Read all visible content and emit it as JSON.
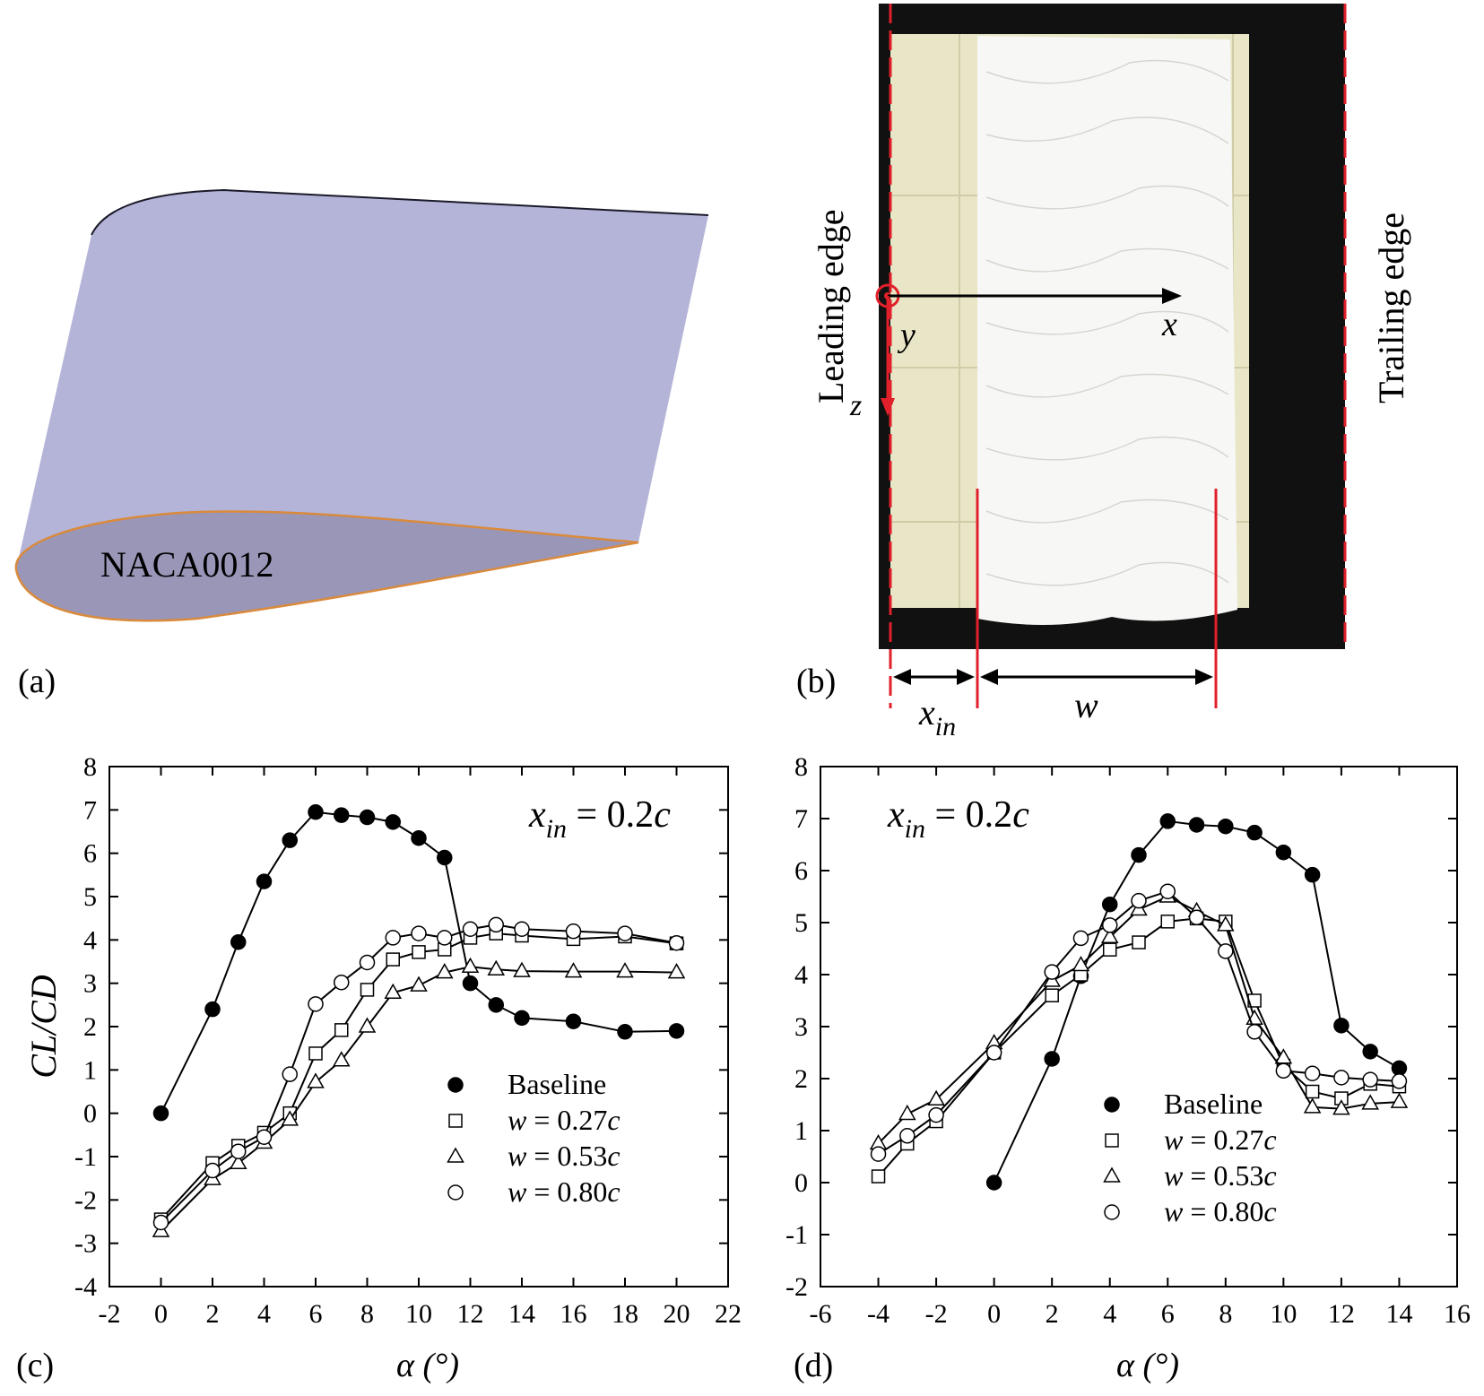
{
  "panels": {
    "a": {
      "label": "(a)",
      "airfoil_label": "NACA0012"
    },
    "b": {
      "label": "(b)",
      "leading_edge": "Leading edge",
      "trailing_edge": "Trailing edge",
      "axis_x": "x",
      "axis_y": "y",
      "axis_z": "z",
      "dim_xin_main": "x",
      "dim_xin_sub": "in",
      "dim_w": "w"
    },
    "c": {
      "label": "(c)"
    },
    "d": {
      "label": "(d)"
    }
  },
  "colors": {
    "baseline": "#000000",
    "open_marker": "#ffffff",
    "airfoil_face": "#b4b4d8",
    "airfoil_section": "#9a96b8",
    "airfoil_edge": "#d98a3c",
    "annotation_red": "#e0202a"
  },
  "chart_data": [
    {
      "type": "line",
      "panel": "c",
      "xlabel": "α (°)",
      "ylabel": "CL/CD",
      "annotation": "x_in = 0.2c",
      "annotation_main": "x",
      "annotation_sub": "in",
      "annotation_rest": " = 0.2",
      "annotation_c": "c",
      "xlim": [
        -2,
        22
      ],
      "ylim": [
        -4,
        8
      ],
      "xticks": [
        -2,
        0,
        2,
        4,
        6,
        8,
        10,
        12,
        14,
        16,
        18,
        20,
        22
      ],
      "yticks": [
        -4,
        -3,
        -2,
        -1,
        0,
        1,
        2,
        3,
        4,
        5,
        6,
        7,
        8
      ],
      "legend_position": "lower-right",
      "series": [
        {
          "name": "Baseline",
          "marker": "filled-circle",
          "x": [
            0,
            2,
            3,
            4,
            5,
            6,
            7,
            8,
            9,
            10,
            11,
            12,
            13,
            14,
            16,
            18,
            20
          ],
          "y": [
            0.0,
            2.4,
            3.95,
            5.35,
            6.3,
            6.95,
            6.88,
            6.83,
            6.72,
            6.35,
            5.9,
            3.0,
            2.5,
            2.2,
            2.12,
            1.88,
            1.9
          ]
        },
        {
          "name": "w = 0.27c",
          "name_rest": " = 0.27",
          "marker": "open-square",
          "x": [
            0,
            2,
            3,
            4,
            5,
            6,
            7,
            8,
            9,
            10,
            11,
            12,
            13,
            14,
            16,
            18,
            20
          ],
          "y": [
            -2.45,
            -1.15,
            -0.75,
            -0.45,
            0.0,
            1.38,
            1.92,
            2.85,
            3.55,
            3.72,
            3.78,
            4.05,
            4.15,
            4.1,
            4.02,
            4.08,
            3.92
          ]
        },
        {
          "name": "w = 0.53c",
          "name_rest": " = 0.53",
          "marker": "open-triangle",
          "x": [
            0,
            2,
            3,
            4,
            5,
            6,
            7,
            8,
            9,
            10,
            11,
            12,
            13,
            14,
            16,
            18,
            20
          ],
          "y": [
            -2.72,
            -1.52,
            -1.15,
            -0.68,
            -0.15,
            0.72,
            1.22,
            2.0,
            2.78,
            2.95,
            3.25,
            3.38,
            3.32,
            3.28,
            3.27,
            3.27,
            3.25
          ]
        },
        {
          "name": "w = 0.80c",
          "name_rest": " = 0.80",
          "marker": "open-circle",
          "x": [
            0,
            2,
            3,
            4,
            5,
            6,
            7,
            8,
            9,
            10,
            11,
            12,
            13,
            14,
            16,
            18,
            20
          ],
          "y": [
            -2.52,
            -1.32,
            -0.88,
            -0.55,
            0.9,
            2.52,
            3.02,
            3.48,
            4.05,
            4.15,
            4.05,
            4.25,
            4.35,
            4.25,
            4.2,
            4.15,
            3.93
          ]
        }
      ]
    },
    {
      "type": "line",
      "panel": "d",
      "xlabel": "α (°)",
      "ylabel": "",
      "annotation": "x_in = 0.2c",
      "annotation_main": "x",
      "annotation_sub": "in",
      "annotation_rest": " = 0.2",
      "annotation_c": "c",
      "xlim": [
        -6,
        16
      ],
      "ylim": [
        -2,
        8
      ],
      "xticks": [
        -6,
        -4,
        -2,
        0,
        2,
        4,
        6,
        8,
        10,
        12,
        14,
        16
      ],
      "yticks": [
        -2,
        -1,
        0,
        1,
        2,
        3,
        4,
        5,
        6,
        7,
        8
      ],
      "legend_position": "lower-center",
      "series": [
        {
          "name": "Baseline",
          "marker": "filled-circle",
          "x": [
            0,
            2,
            3,
            4,
            5,
            6,
            7,
            8,
            9,
            10,
            11,
            12,
            13,
            14
          ],
          "y": [
            0.0,
            2.38,
            3.97,
            5.35,
            6.3,
            6.95,
            6.88,
            6.85,
            6.73,
            6.35,
            5.92,
            3.02,
            2.52,
            2.2
          ]
        },
        {
          "name": "w = 0.27c",
          "name_rest": " = 0.27",
          "marker": "open-square",
          "x": [
            -4,
            -3,
            -2,
            0,
            2,
            3,
            4,
            5,
            6,
            7,
            8,
            9,
            10,
            11,
            12,
            13,
            14
          ],
          "y": [
            0.12,
            0.75,
            1.18,
            2.5,
            3.6,
            4.0,
            4.48,
            4.62,
            5.02,
            5.08,
            5.02,
            3.5,
            2.25,
            1.75,
            1.62,
            1.9,
            1.85
          ]
        },
        {
          "name": "w = 0.53c",
          "name_rest": " = 0.53",
          "marker": "open-triangle",
          "x": [
            -4,
            -3,
            -2,
            0,
            2,
            3,
            4,
            5,
            6,
            7,
            8,
            9,
            10,
            11,
            12,
            13,
            14
          ],
          "y": [
            0.75,
            1.32,
            1.6,
            2.68,
            3.88,
            4.18,
            4.72,
            5.25,
            5.5,
            5.22,
            4.95,
            3.15,
            2.4,
            1.45,
            1.42,
            1.52,
            1.55
          ]
        },
        {
          "name": "w = 0.80c",
          "name_rest": " = 0.80",
          "marker": "open-circle",
          "x": [
            -4,
            -3,
            -2,
            0,
            2,
            3,
            4,
            5,
            6,
            7,
            8,
            9,
            10,
            11,
            12,
            13,
            14
          ],
          "y": [
            0.55,
            0.9,
            1.3,
            2.5,
            4.05,
            4.7,
            4.95,
            5.42,
            5.6,
            5.1,
            4.45,
            2.9,
            2.15,
            2.1,
            2.02,
            1.98,
            1.95
          ]
        }
      ]
    }
  ]
}
